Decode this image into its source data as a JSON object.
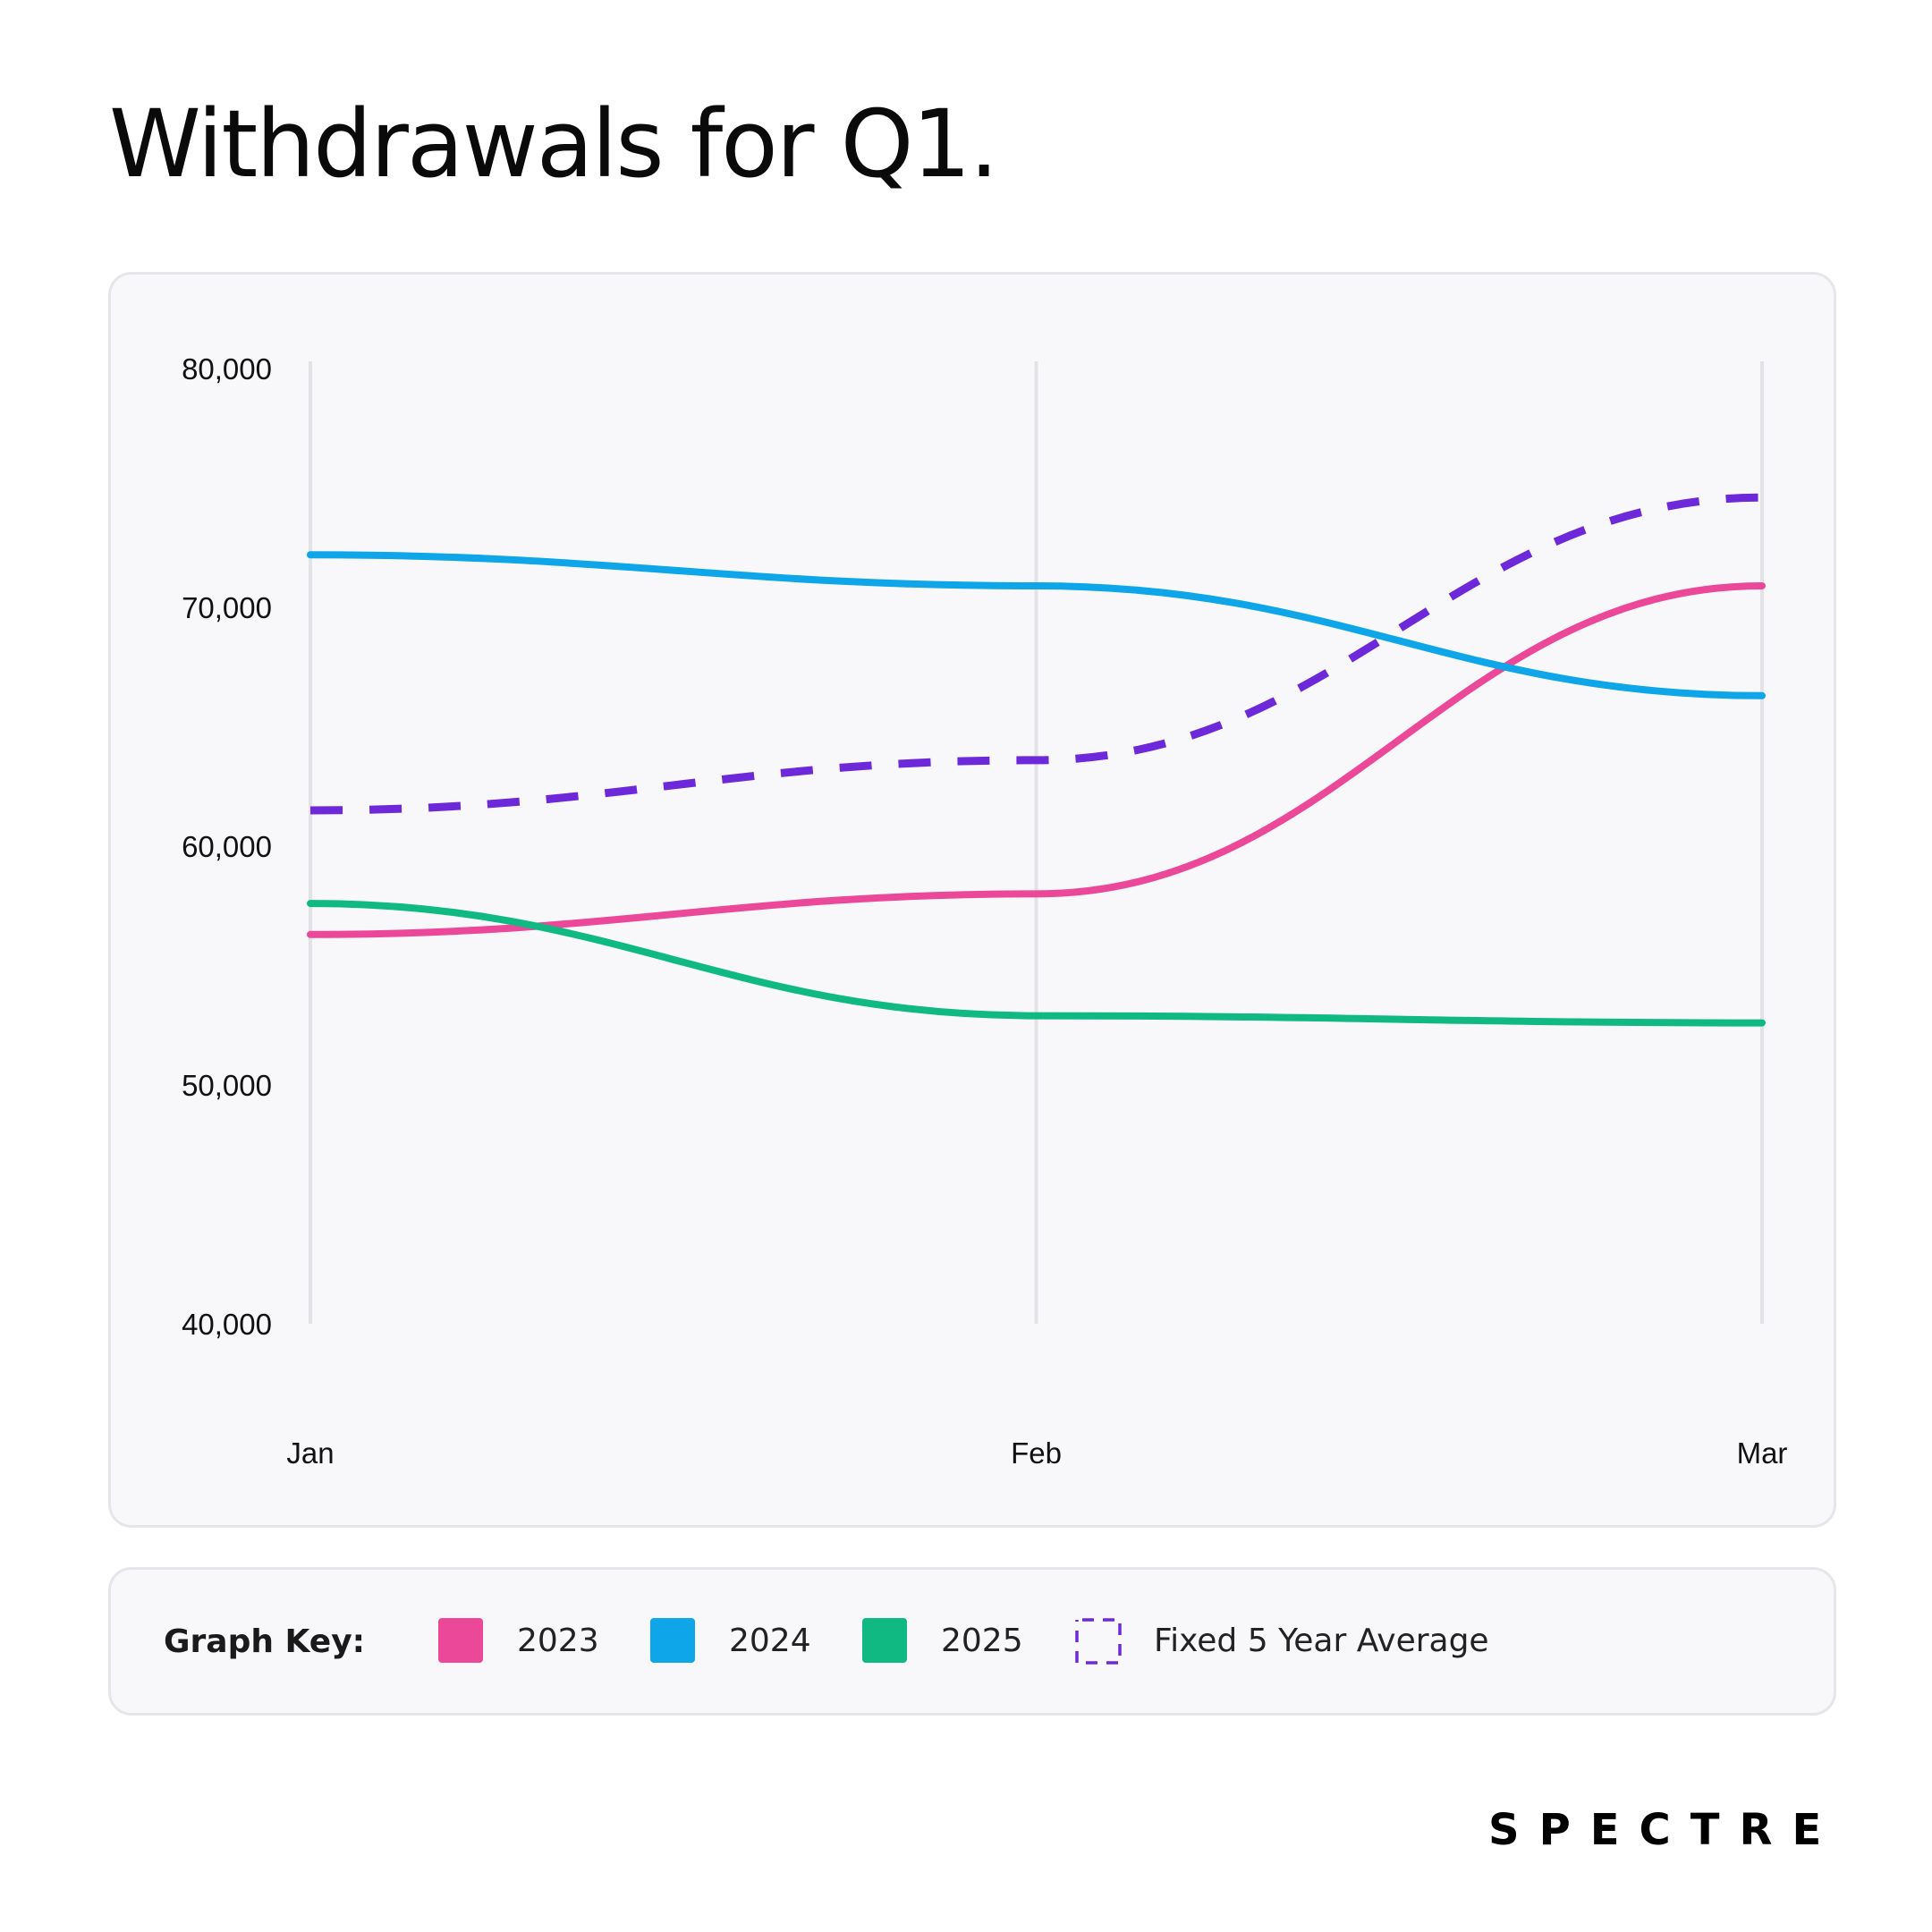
{
  "title": "Withdrawals for Q1.",
  "brand": "SPECTRE",
  "legend": {
    "title": "Graph Key:",
    "items": [
      {
        "label": "2023",
        "color": "#ec4899",
        "style": "solid"
      },
      {
        "label": "2024",
        "color": "#0ea5e9",
        "style": "solid"
      },
      {
        "label": "2025",
        "color": "#10b981",
        "style": "solid"
      },
      {
        "label": "Fixed 5 Year Average",
        "color": "#6d28d9",
        "style": "dashed"
      }
    ]
  },
  "chart_data": {
    "type": "line",
    "title": "Withdrawals for Q1.",
    "categories": [
      "Jan",
      "Feb",
      "Mar"
    ],
    "ylim": [
      40000,
      80000
    ],
    "yticks": [
      80000,
      70000,
      60000,
      50000,
      40000
    ],
    "ytick_labels": [
      "80,000",
      "70,000",
      "60,000",
      "50,000",
      "40,000"
    ],
    "xlabel": "",
    "ylabel": "",
    "grid": "vertical",
    "legend_position": "bottom",
    "series": [
      {
        "name": "2023",
        "color": "#ec4899",
        "dashed": false,
        "values": [
          56300,
          58000,
          70900
        ]
      },
      {
        "name": "2024",
        "color": "#0ea5e9",
        "dashed": false,
        "values": [
          72200,
          70900,
          66300
        ]
      },
      {
        "name": "2025",
        "color": "#10b981",
        "dashed": false,
        "values": [
          57600,
          52900,
          52600
        ]
      },
      {
        "name": "Fixed 5 Year Average",
        "color": "#6d28d9",
        "dashed": true,
        "values": [
          61500,
          63600,
          74600
        ]
      }
    ]
  }
}
